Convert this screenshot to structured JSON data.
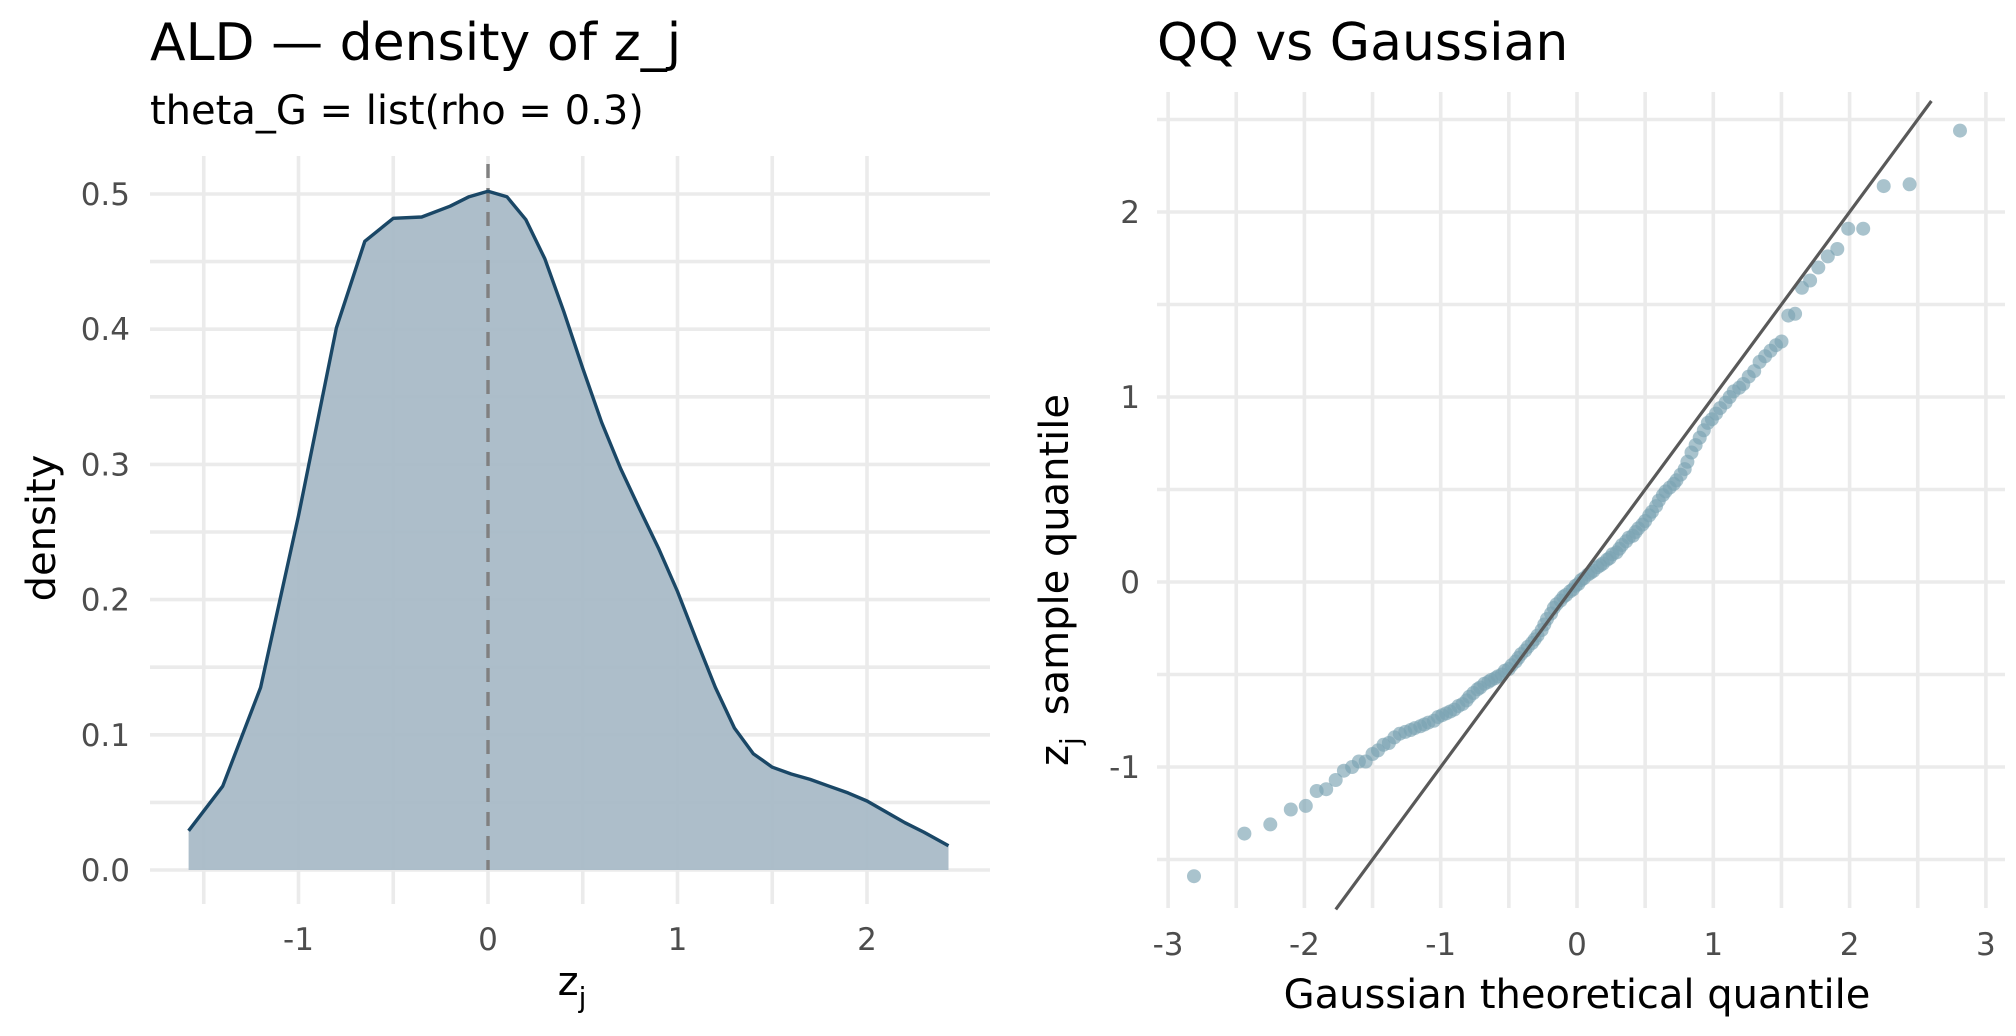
{
  "colors": {
    "density_fill": "#a9bbc7",
    "density_line": "#1a4766",
    "reference_line": "#808080",
    "qq_point": "#7ba3b2",
    "qq_line": "#595959",
    "grid": "#ebebeb"
  },
  "chart_data": [
    {
      "type": "area",
      "title": "ALD — density of z_j",
      "subtitle": "theta_G = list(rho = 0.3)",
      "xlabel": {
        "main": "z",
        "sub": "j"
      },
      "ylabel": "density",
      "xlim": [
        -1.6,
        2.45
      ],
      "ylim": [
        0,
        0.5
      ],
      "xticks": [
        -1,
        0,
        1,
        2
      ],
      "yticks": [
        0.0,
        0.1,
        0.2,
        0.3,
        0.4,
        0.5
      ],
      "ytick_labels": [
        "0.0",
        "0.1",
        "0.2",
        "0.3",
        "0.4",
        "0.5"
      ],
      "reference_vline": 0,
      "grid": true,
      "series": [
        {
          "x": [
            -1.58,
            -1.4,
            -1.2,
            -1.0,
            -0.8,
            -0.65,
            -0.5,
            -0.35,
            -0.2,
            -0.1,
            0.0,
            0.1,
            0.2,
            0.3,
            0.4,
            0.5,
            0.6,
            0.7,
            0.8,
            0.9,
            1.0,
            1.1,
            1.2,
            1.3,
            1.4,
            1.5,
            1.6,
            1.7,
            1.8,
            1.9,
            2.0,
            2.1,
            2.2,
            2.3,
            2.43
          ],
          "y": [
            0.029,
            0.062,
            0.135,
            0.262,
            0.401,
            0.465,
            0.482,
            0.483,
            0.491,
            0.498,
            0.502,
            0.498,
            0.481,
            0.452,
            0.413,
            0.371,
            0.331,
            0.297,
            0.267,
            0.238,
            0.206,
            0.17,
            0.135,
            0.105,
            0.086,
            0.076,
            0.071,
            0.067,
            0.062,
            0.057,
            0.051,
            0.043,
            0.035,
            0.028,
            0.018
          ]
        }
      ]
    },
    {
      "type": "scatter",
      "title": "QQ vs Gaussian",
      "subtitle": "",
      "xlabel": "Gaussian theoretical quantile",
      "ylabel": {
        "main": "z",
        "sub": "j",
        "rest": "sample quantile"
      },
      "xlim": [
        -3.0,
        3.1
      ],
      "ylim": [
        -1.8,
        2.6
      ],
      "xticks": [
        -3,
        -2,
        -1,
        0,
        1,
        2,
        3
      ],
      "yticks": [
        -1,
        0,
        1,
        2
      ],
      "grid": true,
      "reference_line": {
        "intercept": 0,
        "slope": 1
      },
      "points": {
        "x": [
          -2.81,
          -2.44,
          -2.25,
          -2.1,
          -1.99,
          -1.91,
          -1.84,
          -1.77,
          -1.71,
          -1.65,
          -1.6,
          -1.55,
          -1.5,
          -1.46,
          -1.42,
          -1.38,
          -1.34,
          -1.3,
          -1.26,
          -1.22,
          -1.19,
          -1.15,
          -1.12,
          -1.09,
          -1.05,
          -1.02,
          -0.99,
          -0.96,
          -0.93,
          -0.9,
          -0.87,
          -0.84,
          -0.81,
          -0.79,
          -0.76,
          -0.73,
          -0.71,
          -0.68,
          -0.65,
          -0.63,
          -0.6,
          -0.58,
          -0.55,
          -0.53,
          -0.5,
          -0.48,
          -0.45,
          -0.43,
          -0.41,
          -0.38,
          -0.36,
          -0.33,
          -0.31,
          -0.29,
          -0.26,
          -0.24,
          -0.22,
          -0.19,
          -0.17,
          -0.15,
          -0.12,
          -0.1,
          -0.08,
          -0.05,
          -0.03,
          -0.01,
          0.01,
          0.03,
          0.05,
          0.08,
          0.1,
          0.12,
          0.15,
          0.17,
          0.19,
          0.22,
          0.24,
          0.26,
          0.29,
          0.31,
          0.33,
          0.36,
          0.38,
          0.41,
          0.43,
          0.45,
          0.48,
          0.5,
          0.53,
          0.55,
          0.58,
          0.6,
          0.63,
          0.65,
          0.68,
          0.71,
          0.73,
          0.76,
          0.79,
          0.81,
          0.84,
          0.87,
          0.9,
          0.93,
          0.96,
          0.99,
          1.02,
          1.05,
          1.09,
          1.12,
          1.15,
          1.19,
          1.22,
          1.26,
          1.3,
          1.34,
          1.38,
          1.42,
          1.46,
          1.5,
          1.55,
          1.6,
          1.65,
          1.71,
          1.77,
          1.84,
          1.91,
          1.99,
          2.1,
          2.25,
          2.44,
          2.81
        ],
        "y": [
          -1.59,
          -1.36,
          -1.31,
          -1.23,
          -1.21,
          -1.13,
          -1.12,
          -1.07,
          -1.02,
          -1.0,
          -0.97,
          -0.97,
          -0.93,
          -0.91,
          -0.88,
          -0.87,
          -0.84,
          -0.82,
          -0.81,
          -0.8,
          -0.79,
          -0.78,
          -0.77,
          -0.76,
          -0.75,
          -0.73,
          -0.72,
          -0.71,
          -0.7,
          -0.69,
          -0.67,
          -0.66,
          -0.64,
          -0.62,
          -0.6,
          -0.58,
          -0.57,
          -0.55,
          -0.54,
          -0.53,
          -0.52,
          -0.51,
          -0.5,
          -0.48,
          -0.47,
          -0.45,
          -0.43,
          -0.41,
          -0.39,
          -0.37,
          -0.35,
          -0.33,
          -0.31,
          -0.29,
          -0.26,
          -0.23,
          -0.2,
          -0.17,
          -0.14,
          -0.12,
          -0.1,
          -0.08,
          -0.07,
          -0.05,
          -0.04,
          -0.02,
          -0.01,
          0.01,
          0.02,
          0.04,
          0.05,
          0.06,
          0.08,
          0.09,
          0.1,
          0.12,
          0.13,
          0.15,
          0.16,
          0.18,
          0.2,
          0.22,
          0.24,
          0.25,
          0.27,
          0.29,
          0.31,
          0.33,
          0.36,
          0.38,
          0.41,
          0.44,
          0.47,
          0.49,
          0.51,
          0.53,
          0.55,
          0.58,
          0.61,
          0.65,
          0.7,
          0.74,
          0.78,
          0.82,
          0.86,
          0.88,
          0.91,
          0.94,
          0.97,
          1.0,
          1.03,
          1.05,
          1.07,
          1.11,
          1.14,
          1.19,
          1.22,
          1.25,
          1.28,
          1.3,
          1.44,
          1.45,
          1.59,
          1.63,
          1.7,
          1.76,
          1.8,
          1.91,
          1.91,
          2.14,
          2.15,
          2.44
        ]
      }
    }
  ]
}
